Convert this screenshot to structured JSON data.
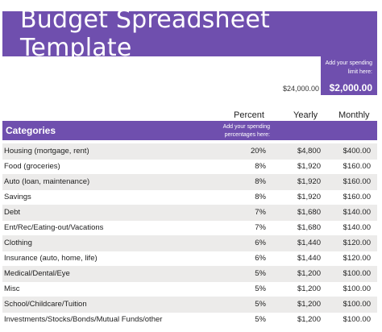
{
  "title": "Budget Spreadsheet Template",
  "limit": {
    "label": "Add your spending limit here:",
    "monthly_value": "$2,000.00",
    "yearly_value": "$24,000.00"
  },
  "columns": {
    "percent": "Percent",
    "yearly": "Yearly",
    "monthly": "Monthly"
  },
  "categories_header": "Categories",
  "percent_instruction": "Add your spending percentages here:",
  "rows": [
    {
      "category": "Housing (mortgage, rent)",
      "percent": "20%",
      "yearly": "$4,800",
      "monthly": "$400.00"
    },
    {
      "category": "Food (groceries)",
      "percent": "8%",
      "yearly": "$1,920",
      "monthly": "$160.00"
    },
    {
      "category": "Auto (loan, maintenance)",
      "percent": "8%",
      "yearly": "$1,920",
      "monthly": "$160.00"
    },
    {
      "category": "Savings",
      "percent": "8%",
      "yearly": "$1,920",
      "monthly": "$160.00"
    },
    {
      "category": "Debt",
      "percent": "7%",
      "yearly": "$1,680",
      "monthly": "$140.00"
    },
    {
      "category": "Ent/Rec/Eating-out/Vacations",
      "percent": "7%",
      "yearly": "$1,680",
      "monthly": "$140.00"
    },
    {
      "category": "Clothing",
      "percent": "6%",
      "yearly": "$1,440",
      "monthly": "$120.00"
    },
    {
      "category": "Insurance (auto, home, life)",
      "percent": "6%",
      "yearly": "$1,440",
      "monthly": "$120.00"
    },
    {
      "category": "Medical/Dental/Eye",
      "percent": "5%",
      "yearly": "$1,200",
      "monthly": "$100.00"
    },
    {
      "category": "Misc",
      "percent": "5%",
      "yearly": "$1,200",
      "monthly": "$100.00"
    },
    {
      "category": "School/Childcare/Tuition",
      "percent": "5%",
      "yearly": "$1,200",
      "monthly": "$100.00"
    },
    {
      "category": "Investments/Stocks/Bonds/Mutual Funds/other",
      "percent": "5%",
      "yearly": "$1,200",
      "monthly": "$100.00"
    }
  ],
  "colors": {
    "accent": "#6f4fae",
    "row_shade": "#ecebea"
  }
}
